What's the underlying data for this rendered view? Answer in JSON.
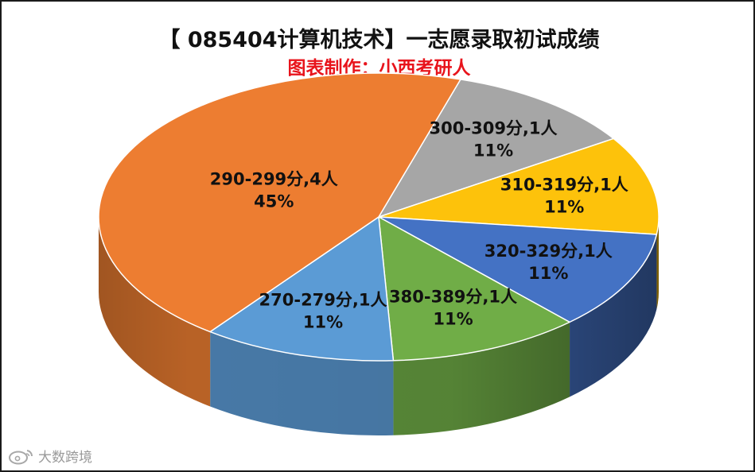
{
  "chart_data": {
    "type": "pie",
    "title": "【 085404计算机技术】一志愿录取初试成绩",
    "subtitle": "图表制作：小西考研人",
    "slices": [
      {
        "label": "300-309分,1人",
        "count": 1,
        "percent": "11%",
        "color": "#a6a6a6"
      },
      {
        "label": "310-319分,1人",
        "count": 1,
        "percent": "11%",
        "color": "#fdc20b"
      },
      {
        "label": "320-329分,1人",
        "count": 1,
        "percent": "11%",
        "color": "#4472c4"
      },
      {
        "label": "380-389分,1人",
        "count": 1,
        "percent": "11%",
        "color": "#70ad47"
      },
      {
        "label": "270-279分,1人",
        "count": 1,
        "percent": "11%",
        "color": "#5b9bd5"
      },
      {
        "label": "290-299分,4人",
        "count": 4,
        "percent": "45%",
        "color": "#ed7d31"
      }
    ]
  },
  "watermark": {
    "text": "大数跨境",
    "icon": "weibo-icon"
  }
}
